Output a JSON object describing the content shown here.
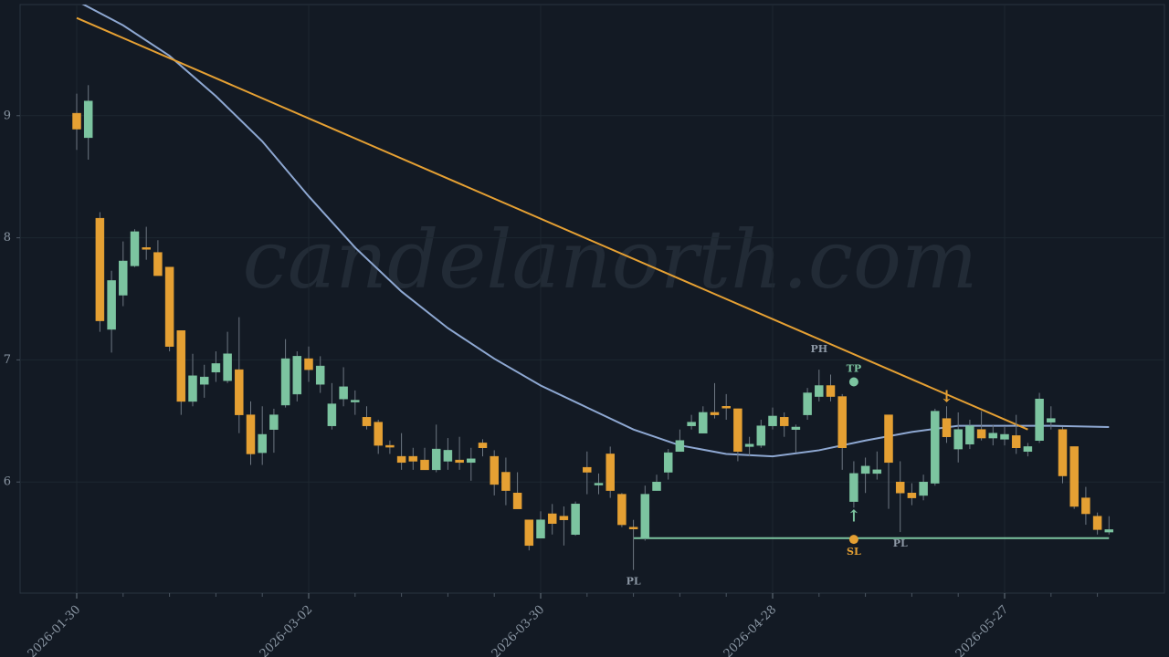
{
  "chart_data": {
    "type": "candlestick",
    "watermark": "candelanorth.com",
    "categories": [
      "2026-01-30",
      null,
      null,
      null,
      null,
      null,
      null,
      null,
      null,
      null,
      null,
      null,
      null,
      null,
      null,
      null,
      null,
      null,
      null,
      null,
      "2026-03-02",
      null,
      null,
      null,
      null,
      null,
      null,
      null,
      null,
      null,
      null,
      null,
      null,
      null,
      null,
      null,
      null,
      null,
      null,
      null,
      "2026-03-30",
      null,
      null,
      null,
      null,
      null,
      null,
      null,
      null,
      null,
      null,
      null,
      null,
      null,
      null,
      null,
      null,
      null,
      null,
      null,
      "2026-04-28",
      null,
      null,
      null,
      null,
      null,
      null,
      null,
      null,
      null,
      null,
      null,
      null,
      null,
      null,
      null,
      null,
      null,
      null,
      null,
      "2026-05-27",
      null,
      null,
      null,
      null,
      null,
      null,
      null,
      null,
      null
    ],
    "open": [
      9.02,
      8.82,
      8.16,
      7.25,
      7.53,
      7.77,
      7.92,
      7.88,
      7.76,
      7.24,
      6.66,
      6.8,
      6.9,
      6.83,
      6.92,
      6.55,
      6.24,
      6.43,
      6.63,
      6.72,
      7.01,
      6.8,
      6.46,
      6.68,
      6.66,
      6.53,
      6.49,
      6.3,
      6.21,
      6.21,
      6.18,
      6.1,
      6.17,
      6.18,
      6.16,
      6.32,
      6.21,
      6.08,
      5.91,
      5.69,
      5.54,
      5.74,
      5.72,
      5.57,
      6.12,
      5.98,
      6.23,
      5.9,
      5.63,
      5.54,
      5.93,
      6.08,
      6.25,
      6.46,
      6.4,
      6.57,
      6.62,
      6.6,
      6.29,
      6.3,
      6.46,
      6.53,
      6.43,
      6.55,
      6.7,
      6.79,
      6.7,
      5.84,
      6.07,
      6.07,
      6.55,
      6.0,
      5.91,
      5.89,
      5.99,
      6.52,
      6.27,
      6.31,
      6.43,
      6.36,
      6.35,
      6.38,
      6.25,
      6.34,
      6.49,
      6.43,
      6.29,
      5.87,
      5.72,
      5.59
    ],
    "high": [
      9.18,
      9.25,
      8.21,
      7.73,
      7.97,
      8.07,
      8.09,
      7.98,
      7.76,
      7.24,
      7.05,
      6.96,
      7.07,
      7.23,
      7.35,
      6.66,
      6.62,
      6.6,
      7.17,
      7.07,
      7.11,
      7.03,
      6.81,
      6.94,
      6.75,
      6.62,
      6.51,
      6.34,
      6.4,
      6.28,
      6.28,
      6.47,
      6.36,
      6.37,
      6.28,
      6.35,
      6.26,
      6.2,
      6.08,
      5.69,
      5.76,
      5.82,
      5.8,
      5.84,
      6.25,
      6.07,
      6.29,
      5.91,
      5.69,
      5.97,
      6.06,
      6.27,
      6.43,
      6.55,
      6.62,
      6.81,
      6.72,
      6.6,
      6.37,
      6.51,
      6.61,
      6.57,
      6.47,
      6.77,
      6.92,
      6.88,
      6.72,
      6.17,
      6.2,
      6.25,
      6.55,
      6.17,
      5.99,
      6.06,
      6.6,
      6.62,
      6.57,
      6.51,
      6.58,
      6.47,
      6.45,
      6.55,
      6.32,
      6.73,
      6.62,
      6.45,
      6.29,
      5.96,
      5.75,
      5.72
    ],
    "low": [
      8.72,
      8.64,
      7.23,
      7.06,
      7.44,
      7.76,
      7.82,
      7.69,
      7.07,
      6.55,
      6.62,
      6.69,
      6.82,
      6.81,
      6.4,
      6.14,
      6.14,
      6.24,
      6.61,
      6.66,
      6.82,
      6.73,
      6.43,
      6.62,
      6.55,
      6.43,
      6.23,
      6.23,
      6.1,
      6.1,
      6.1,
      6.08,
      6.1,
      6.1,
      6.01,
      6.21,
      5.89,
      5.81,
      5.78,
      5.44,
      5.54,
      5.57,
      5.48,
      5.56,
      5.9,
      5.9,
      5.87,
      5.63,
      5.28,
      5.52,
      5.93,
      6.02,
      6.25,
      6.43,
      6.4,
      6.52,
      6.51,
      6.17,
      6.21,
      6.28,
      6.43,
      6.37,
      6.24,
      6.51,
      6.66,
      6.66,
      6.1,
      5.79,
      5.91,
      6.02,
      5.78,
      5.59,
      5.81,
      5.85,
      5.97,
      6.32,
      6.16,
      6.27,
      6.34,
      6.3,
      6.3,
      6.23,
      6.21,
      6.32,
      6.43,
      5.99,
      5.78,
      5.65,
      5.57,
      5.57
    ],
    "close": [
      8.89,
      9.12,
      7.32,
      7.65,
      7.81,
      8.05,
      7.91,
      7.69,
      7.11,
      6.66,
      6.87,
      6.86,
      6.97,
      7.05,
      6.55,
      6.23,
      6.39,
      6.55,
      7.01,
      7.03,
      6.92,
      6.95,
      6.64,
      6.78,
      6.67,
      6.46,
      6.3,
      6.29,
      6.16,
      6.17,
      6.1,
      6.27,
      6.26,
      6.16,
      6.19,
      6.28,
      5.98,
      5.93,
      5.78,
      5.48,
      5.69,
      5.66,
      5.69,
      5.82,
      6.08,
      5.99,
      5.93,
      5.65,
      5.62,
      5.9,
      6.0,
      6.24,
      6.34,
      6.49,
      6.57,
      6.55,
      6.61,
      6.25,
      6.31,
      6.46,
      6.54,
      6.46,
      6.45,
      6.73,
      6.79,
      6.7,
      6.28,
      6.07,
      6.13,
      6.1,
      6.16,
      5.91,
      5.87,
      6.0,
      6.58,
      6.37,
      6.43,
      6.46,
      6.36,
      6.4,
      6.39,
      6.28,
      6.29,
      6.68,
      6.52,
      6.05,
      5.8,
      5.74,
      5.61,
      5.61
    ],
    "up_color": "#7cc4a0",
    "down_color": "#e5a033",
    "moving_average": {
      "color": "#8ea8d2",
      "x": [
        0,
        4,
        8,
        12,
        16,
        20,
        24,
        28,
        32,
        36,
        40,
        44,
        48,
        52,
        56,
        60,
        64,
        68,
        72,
        76,
        80,
        84,
        89
      ],
      "values": [
        9.94,
        9.74,
        9.49,
        9.16,
        8.79,
        8.34,
        7.92,
        7.56,
        7.26,
        7.01,
        6.79,
        6.61,
        6.43,
        6.3,
        6.23,
        6.21,
        6.26,
        6.34,
        6.41,
        6.46,
        6.46,
        6.46,
        6.45
      ]
    },
    "trendline": {
      "color": "#e5a033",
      "x": [
        0,
        82
      ],
      "values": [
        9.8,
        6.43
      ]
    },
    "support": {
      "color": "#7cc4a0",
      "x": [
        48,
        89
      ],
      "values": [
        5.54,
        5.54
      ]
    },
    "pivots": [
      {
        "text": "PL",
        "x": 48,
        "side": "below"
      },
      {
        "text": "PH",
        "x": 64,
        "side": "above"
      },
      {
        "text": "PL",
        "x": 71,
        "side": "below"
      }
    ],
    "targets": [
      {
        "text": "TP",
        "x": 67,
        "value": 6.82,
        "color": "#7cc4a0",
        "side": "above"
      },
      {
        "text": "SL",
        "x": 67,
        "value": 5.53,
        "color": "#e5a033",
        "side": "below"
      }
    ],
    "signals": [
      {
        "text": "↑",
        "x": 67,
        "color": "#7cc4a0",
        "side": "below"
      },
      {
        "text": "↓",
        "x": 75,
        "color": "#e5a033",
        "side": "above"
      }
    ],
    "ylim": [
      5.09,
      9.91
    ],
    "yticks": [
      6,
      7,
      8,
      9
    ],
    "grid": true
  }
}
